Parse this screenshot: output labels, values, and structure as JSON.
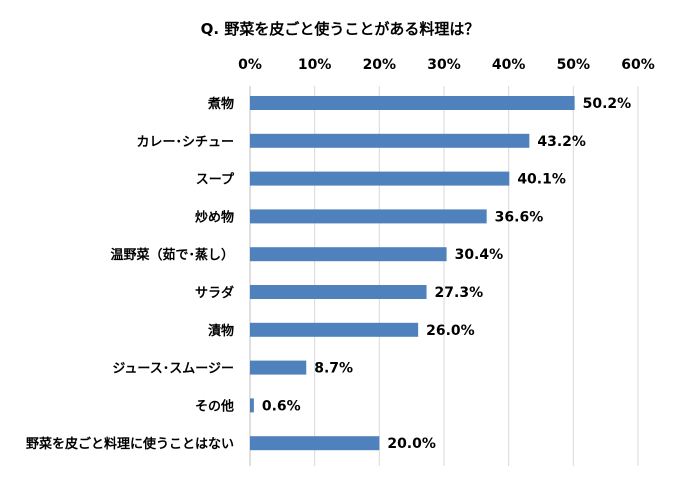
{
  "chart_data": {
    "type": "bar",
    "orientation": "horizontal",
    "title": "Q. 野菜を皮ごと使うことがある料理は？",
    "categories": [
      "煮物",
      "カレー･シチュー",
      "スープ",
      "炒め物",
      "温野菜（茹で･蒸し）",
      "サラダ",
      "漬物",
      "ジュース･スムージー",
      "その他",
      "野菜を皮ごと料理に使うことはない"
    ],
    "values": [
      50.2,
      43.2,
      40.1,
      36.6,
      30.4,
      27.3,
      26.0,
      8.7,
      0.6,
      20.0
    ],
    "value_labels": [
      "50.2%",
      "43.2%",
      "40.1%",
      "36.6%",
      "30.4%",
      "27.3%",
      "26.0%",
      "8.7%",
      "0.6%",
      "20.0%"
    ],
    "xlim": [
      0,
      60
    ],
    "ticks": [
      0,
      10,
      20,
      30,
      40,
      50,
      60
    ],
    "tick_labels": [
      "0%",
      "10%",
      "20%",
      "30%",
      "40%",
      "50%",
      "60%"
    ],
    "axis_position": "top",
    "grid": true,
    "bar_color": "#4f81bd"
  }
}
